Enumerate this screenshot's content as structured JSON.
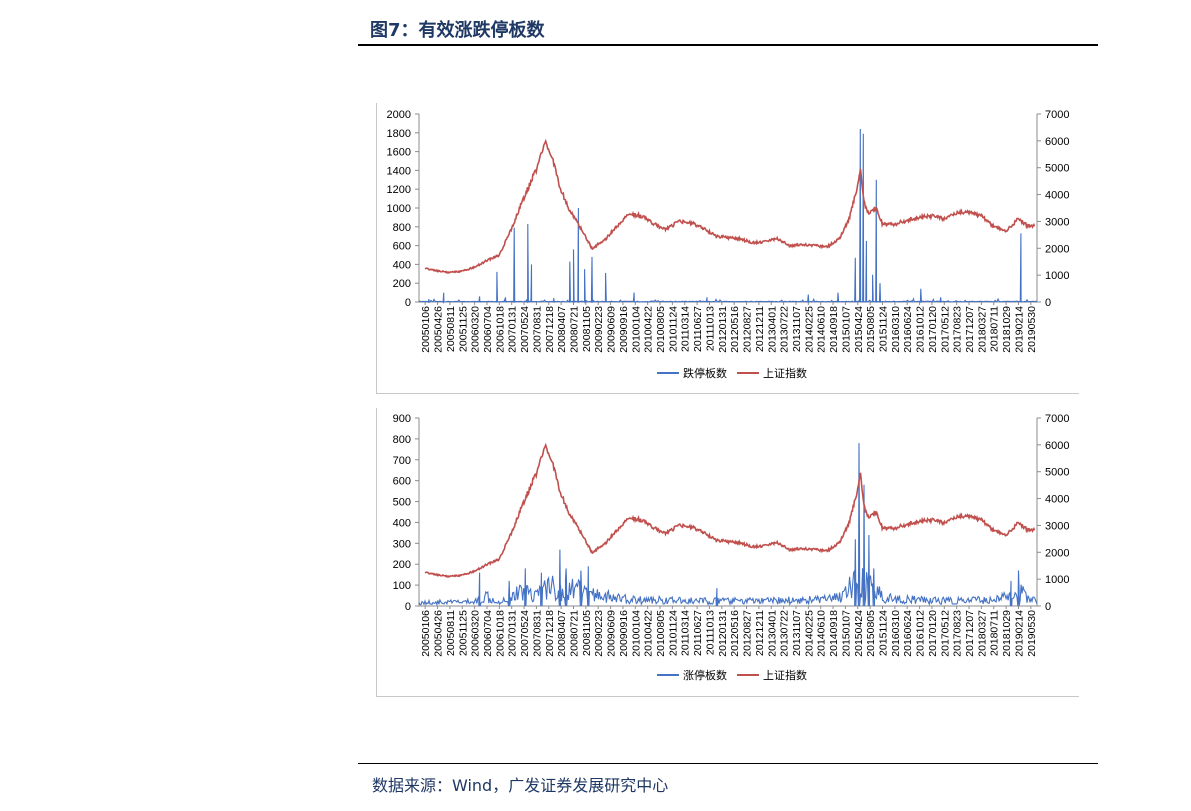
{
  "header": {
    "title": "图7：有效涨跌停板数"
  },
  "footer": {
    "source": "数据来源：Wind，广发证券发展研究中心"
  },
  "colors": {
    "bar_series": "#4472c4",
    "index_series": "#c0504d",
    "title": "#1f3864"
  },
  "x_tick_labels": [
    "20050106",
    "20050426",
    "20050811",
    "20051125",
    "20060320",
    "20060704",
    "20061018",
    "20070131",
    "20070524",
    "20070831",
    "20071218",
    "20080407",
    "20080721",
    "20081105",
    "20090223",
    "20090609",
    "20090916",
    "20100104",
    "20100422",
    "20100805",
    "20101124",
    "20110314",
    "20110627",
    "20111013",
    "20120131",
    "20120516",
    "20120827",
    "20121211",
    "20130401",
    "20130722",
    "20131107",
    "20140225",
    "20140610",
    "20140918",
    "20150107",
    "20150424",
    "20150805",
    "20151124",
    "20160310",
    "20160624",
    "20161012",
    "20170120",
    "20170512",
    "20170823",
    "20171207",
    "20180327",
    "20180711",
    "20181029",
    "20190214",
    "20190530"
  ],
  "chart_data": [
    {
      "type": "line",
      "categories_ref": "x_tick_labels",
      "left_axis": {
        "ylim": [
          0,
          2000
        ],
        "ticks": [
          "0",
          "200",
          "400",
          "600",
          "800",
          "1000",
          "1200",
          "1400",
          "1600",
          "1800",
          "2000"
        ]
      },
      "right_axis": {
        "ylim": [
          0,
          7000
        ],
        "ticks": [
          "0",
          "1000",
          "2000",
          "3000",
          "4000",
          "5000",
          "6000",
          "7000"
        ]
      },
      "legend_position": "bottom",
      "grid": false,
      "series": [
        {
          "name": "跌停板数",
          "axis": "left",
          "style": "spikes",
          "baseline": 5,
          "spikes": [
            {
              "x": 0.3,
              "v": 30
            },
            {
              "x": 1.5,
              "v": 100
            },
            {
              "x": 4.4,
              "v": 60
            },
            {
              "x": 5.8,
              "v": 320
            },
            {
              "x": 6.5,
              "v": 50
            },
            {
              "x": 7.2,
              "v": 790
            },
            {
              "x": 8.3,
              "v": 830
            },
            {
              "x": 8.6,
              "v": 400
            },
            {
              "x": 10.4,
              "v": 40
            },
            {
              "x": 11.7,
              "v": 430
            },
            {
              "x": 12.0,
              "v": 560
            },
            {
              "x": 12.4,
              "v": 1000
            },
            {
              "x": 12.9,
              "v": 350
            },
            {
              "x": 13.5,
              "v": 480
            },
            {
              "x": 14.6,
              "v": 310
            },
            {
              "x": 16.9,
              "v": 100
            },
            {
              "x": 22.8,
              "v": 50
            },
            {
              "x": 31.0,
              "v": 80
            },
            {
              "x": 33.4,
              "v": 100
            },
            {
              "x": 34.8,
              "v": 470
            },
            {
              "x": 35.2,
              "v": 1840
            },
            {
              "x": 35.45,
              "v": 1790
            },
            {
              "x": 35.7,
              "v": 650
            },
            {
              "x": 36.2,
              "v": 290
            },
            {
              "x": 36.5,
              "v": 1300
            },
            {
              "x": 36.8,
              "v": 200
            },
            {
              "x": 40.1,
              "v": 140
            },
            {
              "x": 41.7,
              "v": 50
            },
            {
              "x": 48.2,
              "v": 730
            }
          ]
        },
        {
          "name": "上证指数",
          "axis": "right",
          "points": [
            [
              0,
              1250
            ],
            [
              1,
              1150
            ],
            [
              2,
              1100
            ],
            [
              3,
              1150
            ],
            [
              4,
              1300
            ],
            [
              5,
              1550
            ],
            [
              6,
              1750
            ],
            [
              7,
              2750
            ],
            [
              8,
              3900
            ],
            [
              9,
              4950
            ],
            [
              9.7,
              5950
            ],
            [
              10.3,
              5400
            ],
            [
              10.8,
              4400
            ],
            [
              11.5,
              3600
            ],
            [
              12.5,
              2800
            ],
            [
              13.5,
              2000
            ],
            [
              14.5,
              2300
            ],
            [
              15.5,
              2800
            ],
            [
              16.5,
              3300
            ],
            [
              17.5,
              3200
            ],
            [
              18.5,
              2900
            ],
            [
              19.5,
              2700
            ],
            [
              20.5,
              3000
            ],
            [
              21.5,
              2950
            ],
            [
              22.5,
              2750
            ],
            [
              23.5,
              2450
            ],
            [
              24.5,
              2400
            ],
            [
              25.5,
              2350
            ],
            [
              26.5,
              2200
            ],
            [
              27.5,
              2250
            ],
            [
              28.5,
              2350
            ],
            [
              29.5,
              2100
            ],
            [
              30.5,
              2150
            ],
            [
              31.5,
              2100
            ],
            [
              32.5,
              2050
            ],
            [
              33.5,
              2350
            ],
            [
              34.3,
              3100
            ],
            [
              34.9,
              4200
            ],
            [
              35.2,
              4950
            ],
            [
              35.5,
              3700
            ],
            [
              35.9,
              3300
            ],
            [
              36.5,
              3500
            ],
            [
              37.0,
              2900
            ],
            [
              38.0,
              2900
            ],
            [
              39.0,
              3050
            ],
            [
              40.0,
              3150
            ],
            [
              41.0,
              3200
            ],
            [
              42.0,
              3100
            ],
            [
              43.0,
              3300
            ],
            [
              44.0,
              3350
            ],
            [
              45.0,
              3200
            ],
            [
              46.0,
              2800
            ],
            [
              47.0,
              2650
            ],
            [
              48.0,
              3100
            ],
            [
              48.7,
              2850
            ],
            [
              49.3,
              2850
            ]
          ]
        }
      ]
    },
    {
      "type": "line",
      "categories_ref": "x_tick_labels",
      "left_axis": {
        "ylim": [
          0,
          900
        ],
        "ticks": [
          "0",
          "100",
          "200",
          "300",
          "400",
          "500",
          "600",
          "700",
          "800",
          "900"
        ]
      },
      "right_axis": {
        "ylim": [
          0,
          7000
        ],
        "ticks": [
          "0",
          "1000",
          "2000",
          "3000",
          "4000",
          "5000",
          "6000",
          "7000"
        ]
      },
      "legend_position": "bottom",
      "grid": false,
      "series": [
        {
          "name": "涨停板数",
          "axis": "left",
          "style": "noisy",
          "envelope": [
            [
              0,
              20
            ],
            [
              4,
              25
            ],
            [
              5,
              60
            ],
            [
              6,
              25
            ],
            [
              7,
              60
            ],
            [
              8,
              90
            ],
            [
              9,
              70
            ],
            [
              10,
              120
            ],
            [
              11,
              90
            ],
            [
              12,
              110
            ],
            [
              13,
              70
            ],
            [
              14,
              70
            ],
            [
              15,
              50
            ],
            [
              17,
              35
            ],
            [
              19,
              35
            ],
            [
              21,
              30
            ],
            [
              24,
              30
            ],
            [
              28,
              30
            ],
            [
              30,
              35
            ],
            [
              33,
              40
            ],
            [
              34,
              80
            ],
            [
              35,
              150
            ],
            [
              36,
              110
            ],
            [
              37,
              60
            ],
            [
              38,
              40
            ],
            [
              40,
              35
            ],
            [
              43,
              30
            ],
            [
              45,
              35
            ],
            [
              46,
              40
            ],
            [
              47,
              50
            ],
            [
              48,
              90
            ],
            [
              49,
              40
            ]
          ],
          "spikes": [
            {
              "x": 4.4,
              "v": 160
            },
            {
              "x": 6.8,
              "v": 120
            },
            {
              "x": 8.1,
              "v": 180
            },
            {
              "x": 9.4,
              "v": 160
            },
            {
              "x": 10.9,
              "v": 270
            },
            {
              "x": 11.4,
              "v": 180
            },
            {
              "x": 12.6,
              "v": 170
            },
            {
              "x": 13.2,
              "v": 190
            },
            {
              "x": 23.6,
              "v": 85
            },
            {
              "x": 34.8,
              "v": 320
            },
            {
              "x": 35.1,
              "v": 780
            },
            {
              "x": 35.5,
              "v": 580
            },
            {
              "x": 35.9,
              "v": 340
            },
            {
              "x": 36.3,
              "v": 180
            },
            {
              "x": 47.4,
              "v": 120
            },
            {
              "x": 48.0,
              "v": 170
            }
          ]
        },
        {
          "name": "上证指数",
          "axis": "right",
          "points": [
            [
              0,
              1250
            ],
            [
              1,
              1150
            ],
            [
              2,
              1100
            ],
            [
              3,
              1150
            ],
            [
              4,
              1300
            ],
            [
              5,
              1550
            ],
            [
              6,
              1750
            ],
            [
              7,
              2750
            ],
            [
              8,
              3900
            ],
            [
              9,
              4950
            ],
            [
              9.7,
              5950
            ],
            [
              10.3,
              5400
            ],
            [
              10.8,
              4400
            ],
            [
              11.5,
              3600
            ],
            [
              12.5,
              2800
            ],
            [
              13.5,
              2000
            ],
            [
              14.5,
              2300
            ],
            [
              15.5,
              2800
            ],
            [
              16.5,
              3300
            ],
            [
              17.5,
              3200
            ],
            [
              18.5,
              2900
            ],
            [
              19.5,
              2700
            ],
            [
              20.5,
              3000
            ],
            [
              21.5,
              2950
            ],
            [
              22.5,
              2750
            ],
            [
              23.5,
              2450
            ],
            [
              24.5,
              2400
            ],
            [
              25.5,
              2350
            ],
            [
              26.5,
              2200
            ],
            [
              27.5,
              2250
            ],
            [
              28.5,
              2350
            ],
            [
              29.5,
              2100
            ],
            [
              30.5,
              2150
            ],
            [
              31.5,
              2100
            ],
            [
              32.5,
              2050
            ],
            [
              33.5,
              2350
            ],
            [
              34.3,
              3100
            ],
            [
              34.9,
              4200
            ],
            [
              35.2,
              4950
            ],
            [
              35.5,
              3700
            ],
            [
              35.9,
              3300
            ],
            [
              36.5,
              3500
            ],
            [
              37.0,
              2900
            ],
            [
              38.0,
              2900
            ],
            [
              39.0,
              3050
            ],
            [
              40.0,
              3150
            ],
            [
              41.0,
              3200
            ],
            [
              42.0,
              3100
            ],
            [
              43.0,
              3300
            ],
            [
              44.0,
              3350
            ],
            [
              45.0,
              3200
            ],
            [
              46.0,
              2800
            ],
            [
              47.0,
              2650
            ],
            [
              48.0,
              3100
            ],
            [
              48.7,
              2850
            ],
            [
              49.3,
              2850
            ]
          ]
        }
      ]
    }
  ]
}
